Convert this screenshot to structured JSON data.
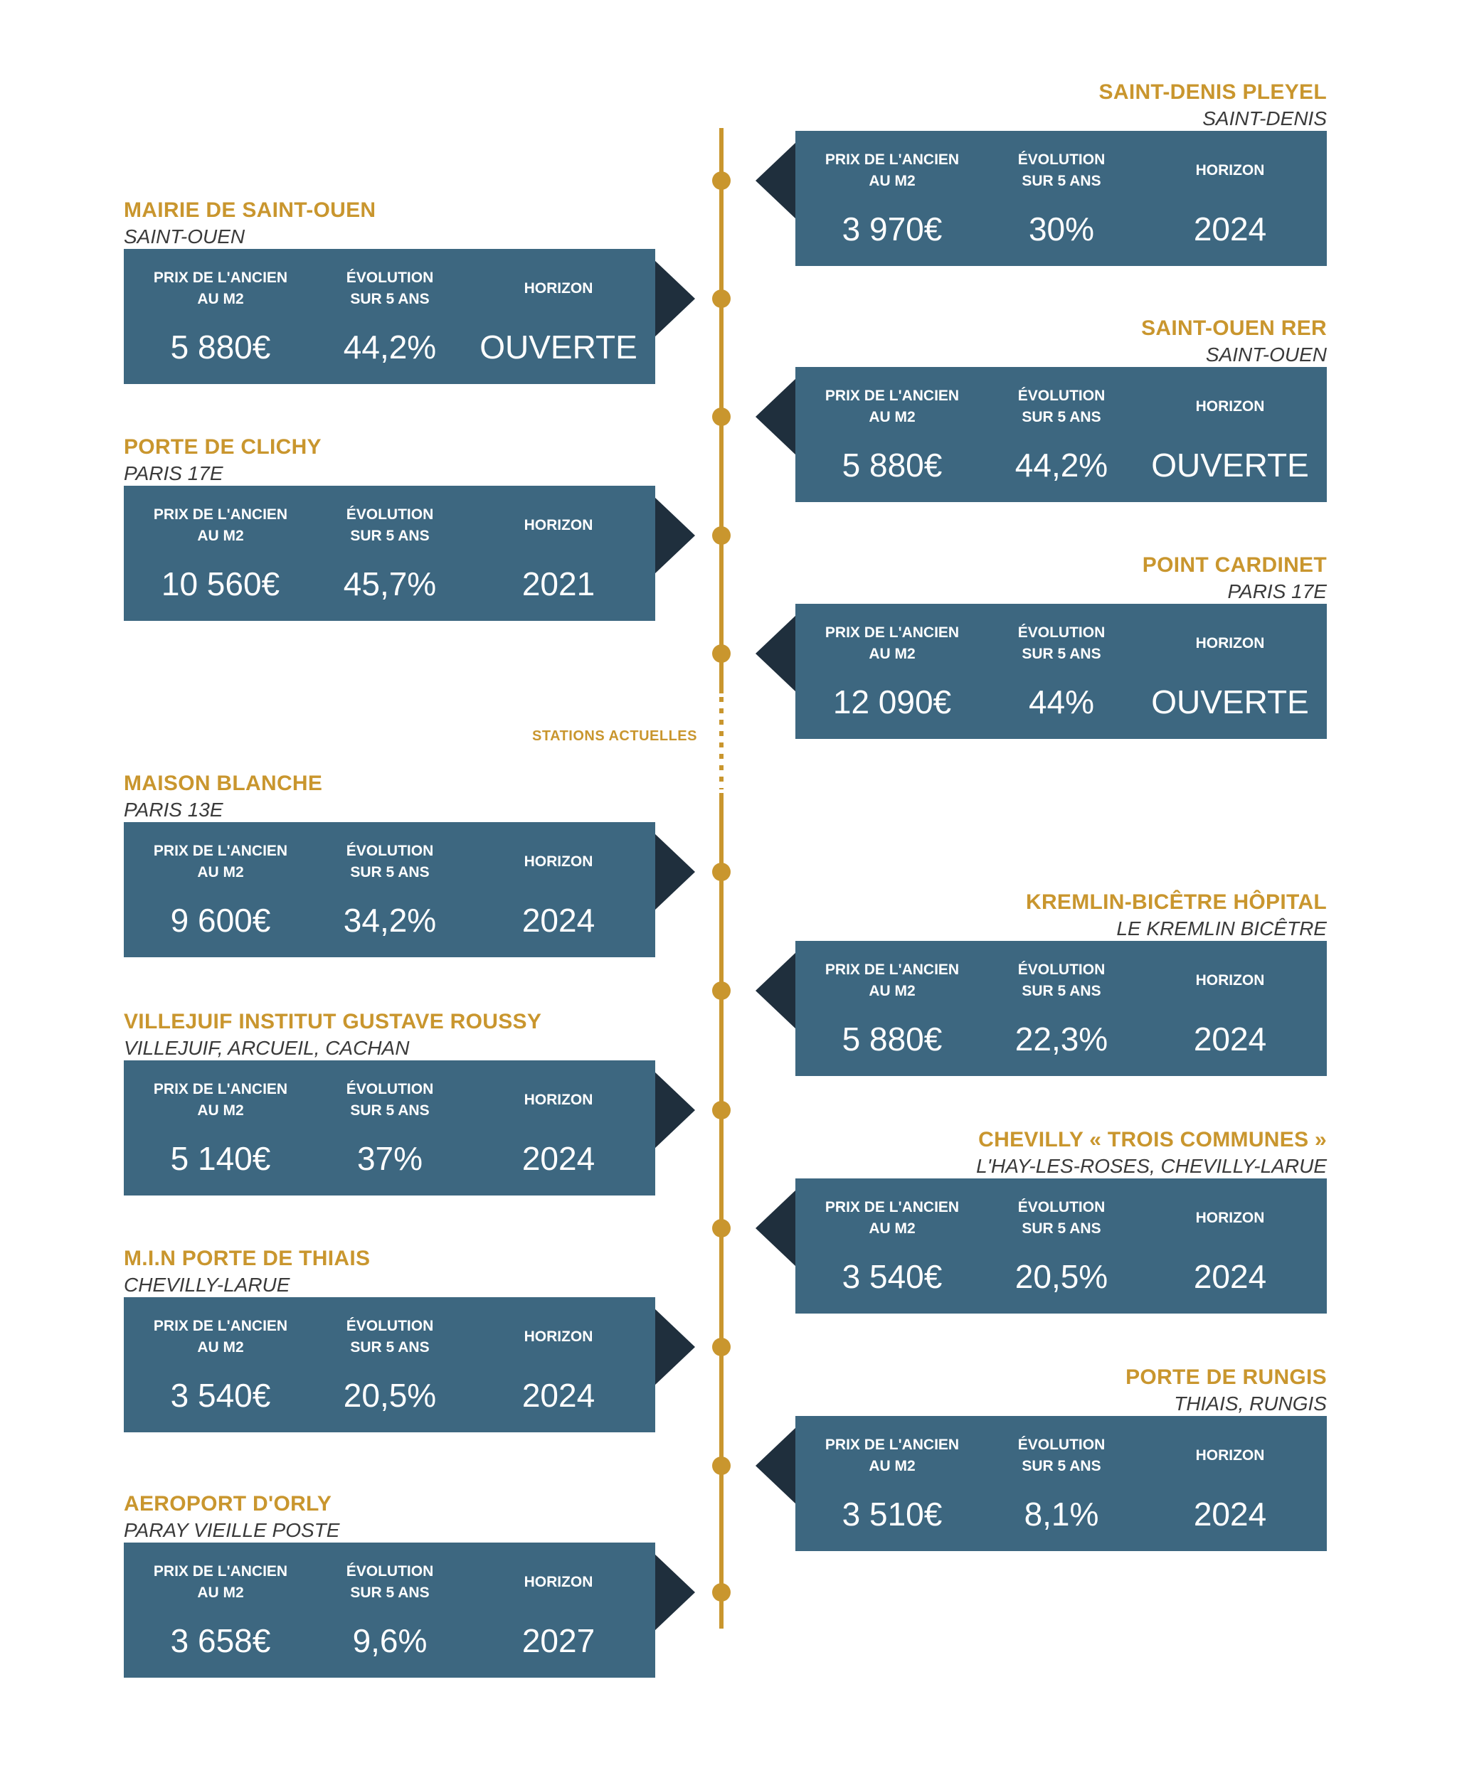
{
  "colors": {
    "gold": "#C9962E",
    "card": "#3D6780",
    "arrow": "#1F2F3D",
    "text_light": "#FFFFFF",
    "city": "#3A3A3A"
  },
  "labels": {
    "price": "PRIX DE L'ANCIEN\nAU M2",
    "evolution": "ÉVOLUTION\nSUR 5 ANS",
    "horizon": "HORIZON",
    "current_stations": "STATIONS ACTUELLES"
  },
  "stations": [
    {
      "side": "right",
      "name": "SAINT-DENIS PLEYEL",
      "city": "SAINT-DENIS",
      "price": "3 970€",
      "evolution": "30%",
      "horizon": "2024"
    },
    {
      "side": "left",
      "name": "MAIRIE DE SAINT-OUEN",
      "city": "SAINT-OUEN",
      "price": "5 880€",
      "evolution": "44,2%",
      "horizon": "OUVERTE"
    },
    {
      "side": "right",
      "name": "SAINT-OUEN RER",
      "city": "SAINT-OUEN",
      "price": "5 880€",
      "evolution": "44,2%",
      "horizon": "OUVERTE"
    },
    {
      "side": "left",
      "name": "PORTE DE CLICHY",
      "city": "PARIS 17E",
      "price": "10 560€",
      "evolution": "45,7%",
      "horizon": "2021"
    },
    {
      "side": "right",
      "name": "POINT CARDINET",
      "city": "PARIS 17E",
      "price": "12 090€",
      "evolution": "44%",
      "horizon": "OUVERTE"
    },
    {
      "side": "left",
      "name": "MAISON BLANCHE",
      "city": "PARIS 13E",
      "price": "9 600€",
      "evolution": "34,2%",
      "horizon": "2024"
    },
    {
      "side": "right",
      "name": "KREMLIN-BICÊTRE HÔPITAL",
      "city": "LE KREMLIN BICÊTRE",
      "price": "5 880€",
      "evolution": "22,3%",
      "horizon": "2024"
    },
    {
      "side": "left",
      "name": "VILLEJUIF INSTITUT GUSTAVE ROUSSY",
      "city": "VILLEJUIF, ARCUEIL, CACHAN",
      "price": "5 140€",
      "evolution": "37%",
      "horizon": "2024"
    },
    {
      "side": "right",
      "name": "CHEVILLY « TROIS COMMUNES »",
      "city": "L'HAY-LES-ROSES, CHEVILLY-LARUE",
      "price": "3 540€",
      "evolution": "20,5%",
      "horizon": "2024"
    },
    {
      "side": "left",
      "name": "M.I.N PORTE DE THIAIS",
      "city": "CHEVILLY-LARUE",
      "price": "3 540€",
      "evolution": "20,5%",
      "horizon": "2024"
    },
    {
      "side": "right",
      "name": "PORTE DE RUNGIS",
      "city": "THIAIS, RUNGIS",
      "price": "3 510€",
      "evolution": "8,1%",
      "horizon": "2024"
    },
    {
      "side": "left",
      "name": "AEROPORT D'ORLY",
      "city": "PARAY VIEILLE POSTE",
      "price": "3 658€",
      "evolution": "9,6%",
      "horizon": "2027"
    }
  ]
}
